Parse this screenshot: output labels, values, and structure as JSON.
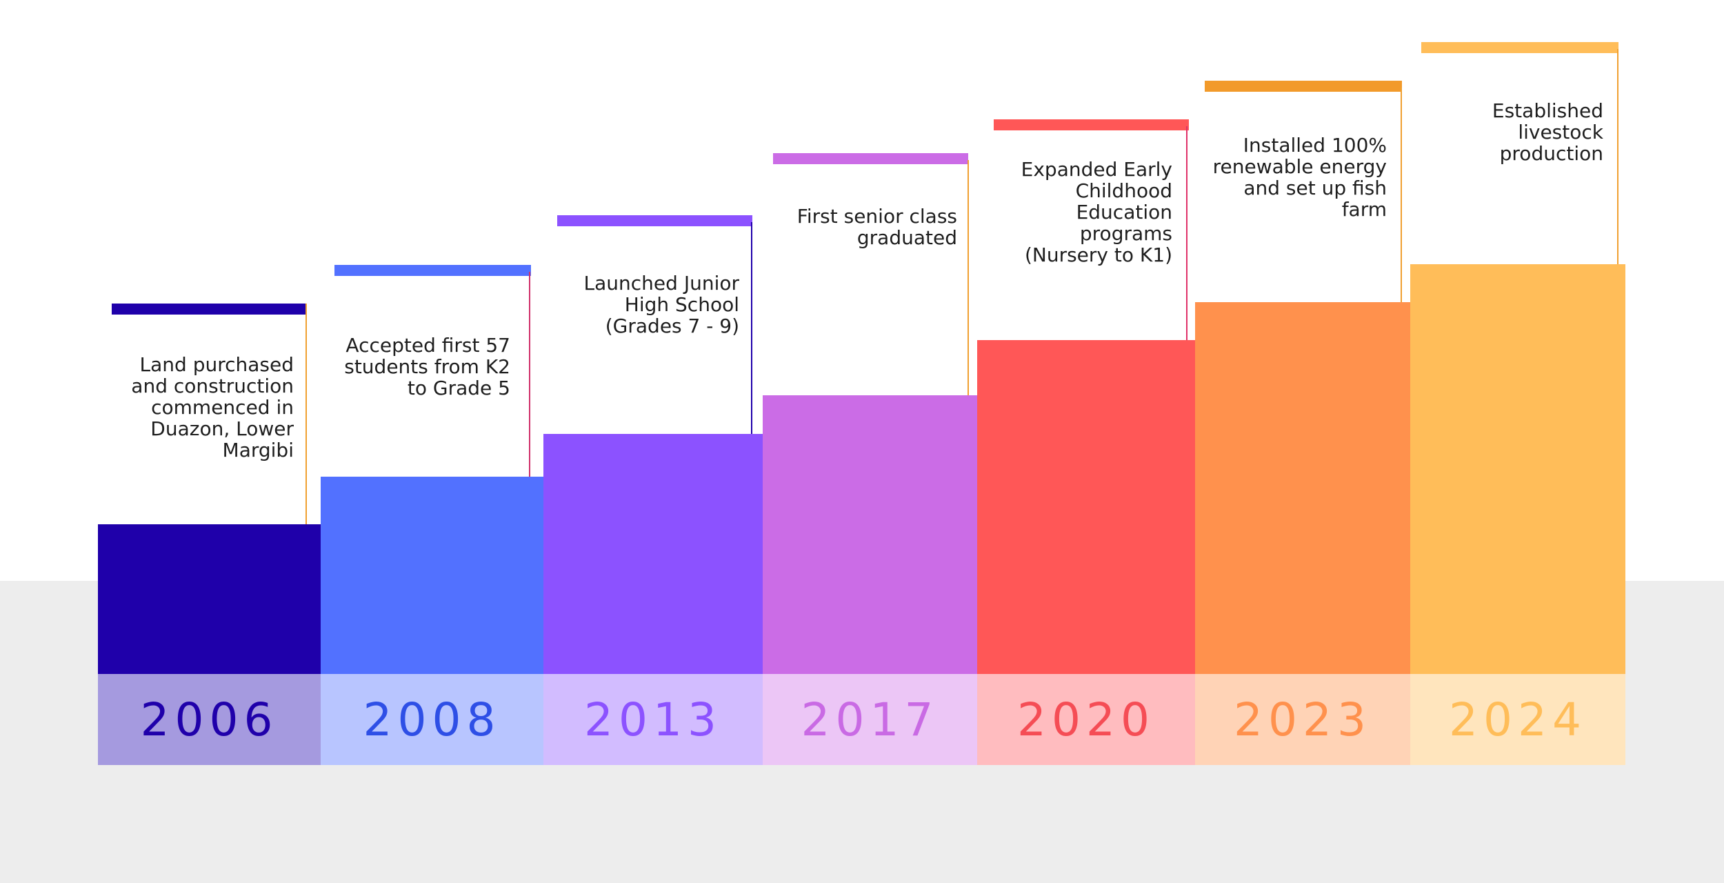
{
  "milestones": [
    {
      "year": "2006",
      "text": "Land purchased and construction commenced in Duazon, Lower Margibi",
      "bar_color": "#1f00aa",
      "band_color": "#a59adf",
      "year_color": "#1f00aa",
      "cap_color": "#1f00aa",
      "leader_color": "#f0a030"
    },
    {
      "year": "2008",
      "text": "Accepted first 57 students from K2 to Grade 5",
      "bar_color": "#5271ff",
      "band_color": "#b8c5ff",
      "year_color": "#2e4fe6",
      "cap_color": "#5271ff",
      "leader_color": "#d0306a"
    },
    {
      "year": "2013",
      "text": "Launched Junior High School (Grades 7 - 9)",
      "bar_color": "#8c52ff",
      "band_color": "#d2bcff",
      "year_color": "#8c52ff",
      "cap_color": "#8c52ff",
      "leader_color": "#1f00aa"
    },
    {
      "year": "2017",
      "text": "First senior class graduated",
      "bar_color": "#cb6ce6",
      "band_color": "#ecc6f6",
      "year_color": "#c96ae4",
      "cap_color": "#cb6ce6",
      "leader_color": "#f0a030"
    },
    {
      "year": "2020",
      "text": "Expanded Early Childhood Education programs (Nursery to K1)",
      "bar_color": "#ff5757",
      "band_color": "#ffbcbf",
      "year_color": "#f54d55",
      "cap_color": "#ff5757",
      "leader_color": "#e03068"
    },
    {
      "year": "2023",
      "text": "Installed 100% renewable energy and set up fish farm",
      "bar_color": "#ff914d",
      "band_color": "#ffd3b6",
      "year_color": "#ff914d",
      "cap_color": "#f29a2a",
      "leader_color": "#f0a030"
    },
    {
      "year": "2024",
      "text": "Established livestock production",
      "bar_color": "#ffbd59",
      "band_color": "#ffe5bd",
      "year_color": "#ffbd59",
      "cap_color": "#ffbd59",
      "leader_color": "#f0a030"
    }
  ]
}
